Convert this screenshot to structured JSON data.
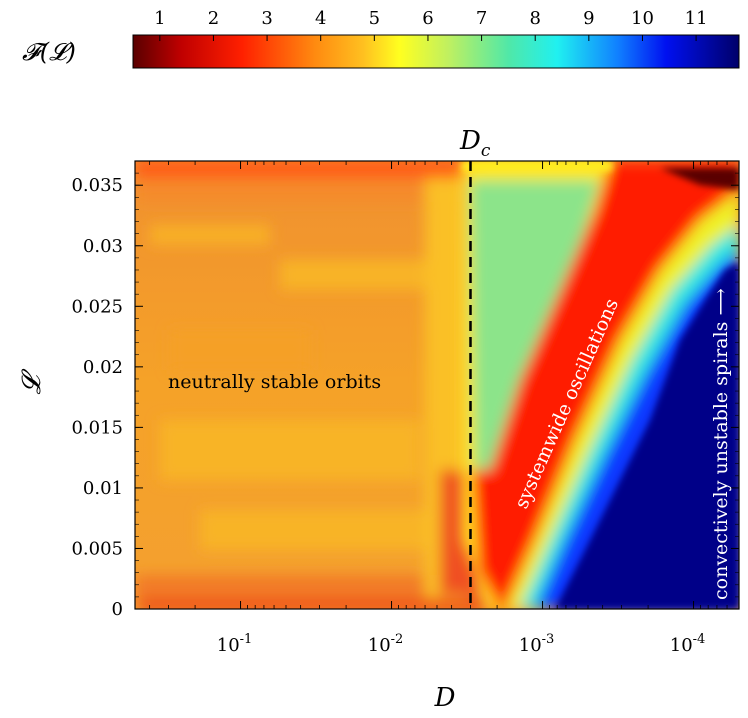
{
  "chart_data": {
    "type": "heatmap",
    "xlabel": "D",
    "ylabel": "𝓛",
    "x_scale": "log, reversed",
    "x_range": [
      0.5,
      5e-05
    ],
    "x_ticks": [
      {
        "value": 0.1,
        "base": "10",
        "exp": "-1"
      },
      {
        "value": 0.01,
        "base": "10",
        "exp": "-2"
      },
      {
        "value": 0.001,
        "base": "10",
        "exp": "-3"
      },
      {
        "value": 0.0001,
        "base": "10",
        "exp": "-4"
      }
    ],
    "ylim": [
      0,
      0.037
    ],
    "y_ticks": [
      {
        "value": 0,
        "label": "0"
      },
      {
        "value": 0.005,
        "label": "0.005"
      },
      {
        "value": 0.01,
        "label": "0.01"
      },
      {
        "value": 0.015,
        "label": "0.015"
      },
      {
        "value": 0.02,
        "label": "0.02"
      },
      {
        "value": 0.025,
        "label": "0.025"
      },
      {
        "value": 0.03,
        "label": "0.03"
      },
      {
        "value": 0.035,
        "label": "0.035"
      }
    ],
    "colorbar": {
      "label": "𝓕(𝓛)",
      "ticks": [
        "1",
        "2",
        "3",
        "4",
        "5",
        "6",
        "7",
        "8",
        "9",
        "10",
        "11"
      ],
      "range": [
        0.5,
        11.8
      ],
      "colormap": "jet-reversed"
    },
    "critical_line": {
      "label_main": "D",
      "label_sub": "c",
      "x": 0.003,
      "style": "dashed"
    },
    "regions": [
      {
        "text": "neutrally stable orbits",
        "approx_value": 4.2,
        "color": "#000000"
      },
      {
        "text": "systemwide oscillations",
        "approx_value": 2.3,
        "color": "#ffffff"
      },
      {
        "text": "convectively unstable spirals ⟶",
        "approx_value": 11.5,
        "color": "#ffffff"
      }
    ]
  }
}
